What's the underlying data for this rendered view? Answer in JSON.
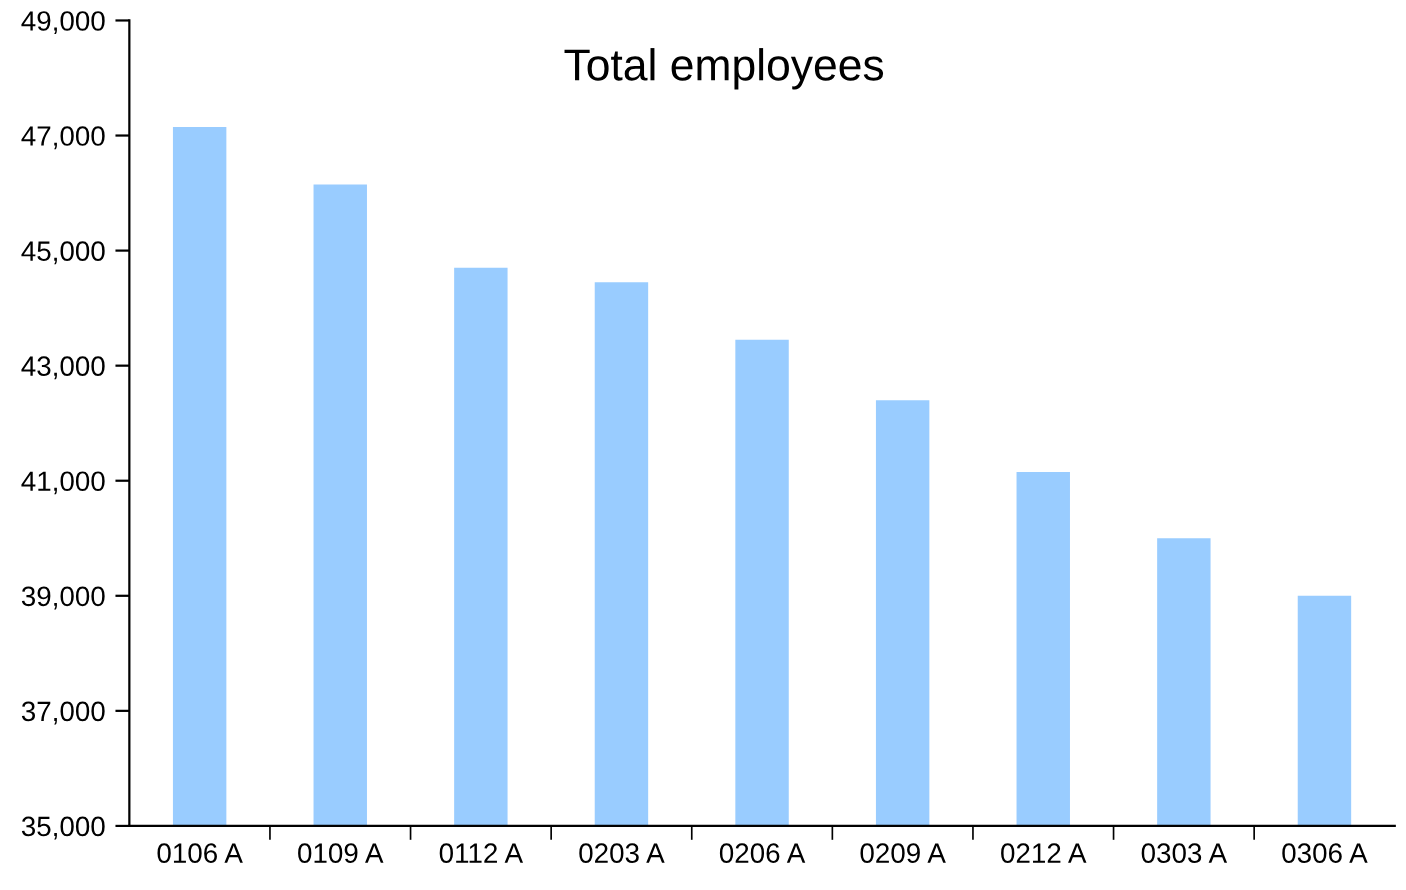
{
  "chart_data": {
    "type": "bar",
    "title": "Total employees",
    "categories": [
      "0106 A",
      "0109 A",
      "0112 A",
      "0203 A",
      "0206 A",
      "0209 A",
      "0212 A",
      "0303 A",
      "0306 A"
    ],
    "values": [
      47150,
      46150,
      44700,
      44450,
      43450,
      42400,
      41150,
      40000,
      39000
    ],
    "color": "#99ccff",
    "ylim": [
      35000,
      49000
    ],
    "yticks": [
      {
        "value": 35000,
        "label": "35,000"
      },
      {
        "value": 37000,
        "label": "37,000"
      },
      {
        "value": 39000,
        "label": "39,000"
      },
      {
        "value": 41000,
        "label": "41,000"
      },
      {
        "value": 43000,
        "label": "43,000"
      },
      {
        "value": 45000,
        "label": "45,000"
      },
      {
        "value": 47000,
        "label": "47,000"
      },
      {
        "value": 49000,
        "label": "49,000"
      }
    ],
    "grid": false
  }
}
